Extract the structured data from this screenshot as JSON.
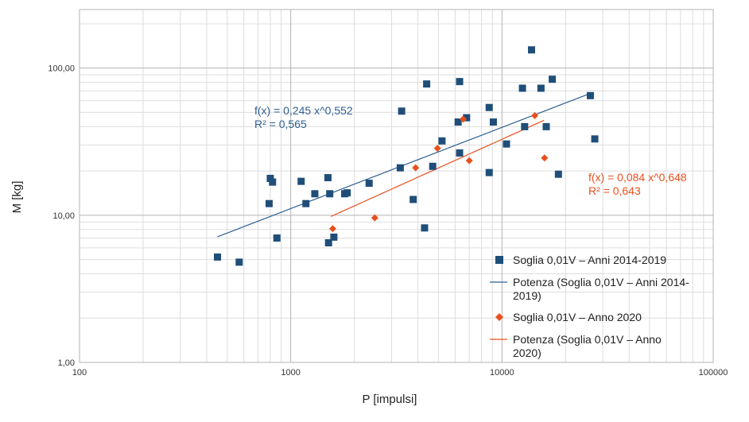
{
  "chart_data": {
    "type": "scatter",
    "xlabel": "P [impulsi]",
    "ylabel": "M [kg]",
    "x_scale": "log",
    "y_scale": "log",
    "xlim": [
      100,
      100000
    ],
    "ylim": [
      1,
      250
    ],
    "x_tick_labels": [
      "100",
      "1000",
      "10000",
      "100000"
    ],
    "y_tick_labels": [
      "1,00",
      "10,00",
      "100,00"
    ],
    "grid": true,
    "legend_position": "right",
    "series": [
      {
        "name": "Soglia 0,01V – Anni 2014-2019",
        "marker": "square",
        "color": "#1f4e79",
        "points": [
          [
            450,
            5.2
          ],
          [
            570,
            4.8
          ],
          [
            790,
            12.0
          ],
          [
            800,
            17.8
          ],
          [
            820,
            16.8
          ],
          [
            860,
            7.0
          ],
          [
            1120,
            17.0
          ],
          [
            1180,
            12.0
          ],
          [
            1300,
            14.0
          ],
          [
            1500,
            18.0
          ],
          [
            1510,
            6.5
          ],
          [
            1530,
            14.0
          ],
          [
            1600,
            7.1
          ],
          [
            1800,
            14.0
          ],
          [
            1850,
            14.2
          ],
          [
            2350,
            16.5
          ],
          [
            3300,
            21.0
          ],
          [
            3350,
            51.0
          ],
          [
            3800,
            12.8
          ],
          [
            4300,
            8.2
          ],
          [
            4400,
            78.0
          ],
          [
            4700,
            21.5
          ],
          [
            5200,
            32.0
          ],
          [
            6200,
            43.0
          ],
          [
            6300,
            81.0
          ],
          [
            6300,
            26.5
          ],
          [
            6800,
            46.0
          ],
          [
            8700,
            19.5
          ],
          [
            8700,
            54.0
          ],
          [
            9100,
            43.0
          ],
          [
            10500,
            30.5
          ],
          [
            12500,
            73.0
          ],
          [
            12800,
            40.0
          ],
          [
            13800,
            133.0
          ],
          [
            15300,
            73.0
          ],
          [
            16200,
            40.0
          ],
          [
            17300,
            84.0
          ],
          [
            18500,
            19.0
          ],
          [
            26200,
            65.0
          ],
          [
            27500,
            33.0
          ]
        ]
      },
      {
        "name": "Soglia 0,01V – Anno 2020",
        "marker": "diamond",
        "color": "#e8501e",
        "points": [
          [
            1580,
            8.1
          ],
          [
            2500,
            9.6
          ],
          [
            3900,
            21.0
          ],
          [
            4950,
            28.5
          ],
          [
            6550,
            45.0
          ],
          [
            7000,
            23.5
          ],
          [
            14300,
            47.5
          ],
          [
            15900,
            24.5
          ]
        ]
      }
    ],
    "trendlines": [
      {
        "name": "Potenza (Soglia 0,01V – Anni 2014-2019)",
        "legend_lines": [
          "Potenza (Soglia 0,01V – Anni 2014-",
          "2019)"
        ],
        "color": "#2e5f93",
        "a": 0.245,
        "b": 0.552,
        "x_range": [
          450,
          26500
        ],
        "equation_lines": [
          "f(x) = 0,245 x^0,552",
          "R² = 0,565"
        ]
      },
      {
        "name": "Potenza (Soglia 0,01V – Anno 2020)",
        "legend_lines": [
          "Potenza (Soglia 0,01V – Anno",
          "2020)"
        ],
        "color": "#e8501e",
        "a": 0.084,
        "b": 0.648,
        "x_range": [
          1550,
          15800
        ],
        "equation_lines": [
          "f(x) = 0,084 x^0,648",
          "R² = 0,643"
        ]
      }
    ],
    "legend": [
      {
        "label_lines": [
          "Soglia 0,01V – Anni 2014-2019"
        ],
        "symbol": "square",
        "color": "#1f4e79"
      },
      {
        "label_lines": [
          "Potenza (Soglia 0,01V – Anni 2014-",
          "2019)"
        ],
        "symbol": "line",
        "color": "#2e5f93"
      },
      {
        "label_lines": [
          "Soglia 0,01V – Anno 2020"
        ],
        "symbol": "diamond",
        "color": "#e8501e"
      },
      {
        "label_lines": [
          "Potenza (Soglia 0,01V – Anno",
          "2020)"
        ],
        "symbol": "line",
        "color": "#e8501e"
      }
    ]
  }
}
